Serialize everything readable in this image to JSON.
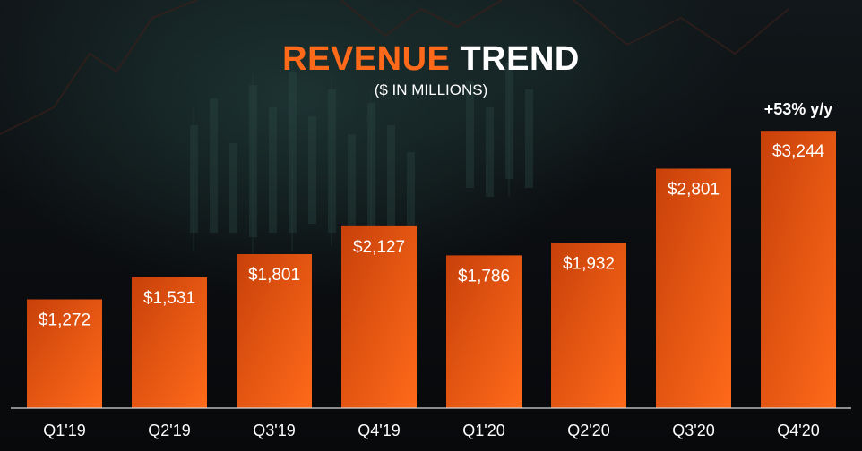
{
  "header": {
    "title_accent": "REVENUE",
    "title_plain": "TREND",
    "subtitle": "($ IN MILLIONS)"
  },
  "colors": {
    "bar_top": "#c8410a",
    "bar_bottom": "#ff6a1a",
    "accent": "#ff6a1a",
    "text": "#ffffff",
    "background": "#0b0d10"
  },
  "chart_data": {
    "type": "bar",
    "title": "REVENUE TREND",
    "subtitle": "($ IN MILLIONS)",
    "categories": [
      "Q1'19",
      "Q2'19",
      "Q3'19",
      "Q4'19",
      "Q1'20",
      "Q2'20",
      "Q3'20",
      "Q4'20"
    ],
    "values": [
      1272,
      1531,
      1801,
      2127,
      1786,
      1932,
      2801,
      3244
    ],
    "data_labels": [
      "$1,272",
      "$1,531",
      "$1,801",
      "$2,127",
      "$1,786",
      "$1,932",
      "$2,801",
      "$3,244"
    ],
    "xlabel": "",
    "ylabel": "",
    "grid": false,
    "annotations": [
      {
        "category": "Q4'20",
        "text": "+53% y/y"
      }
    ]
  }
}
